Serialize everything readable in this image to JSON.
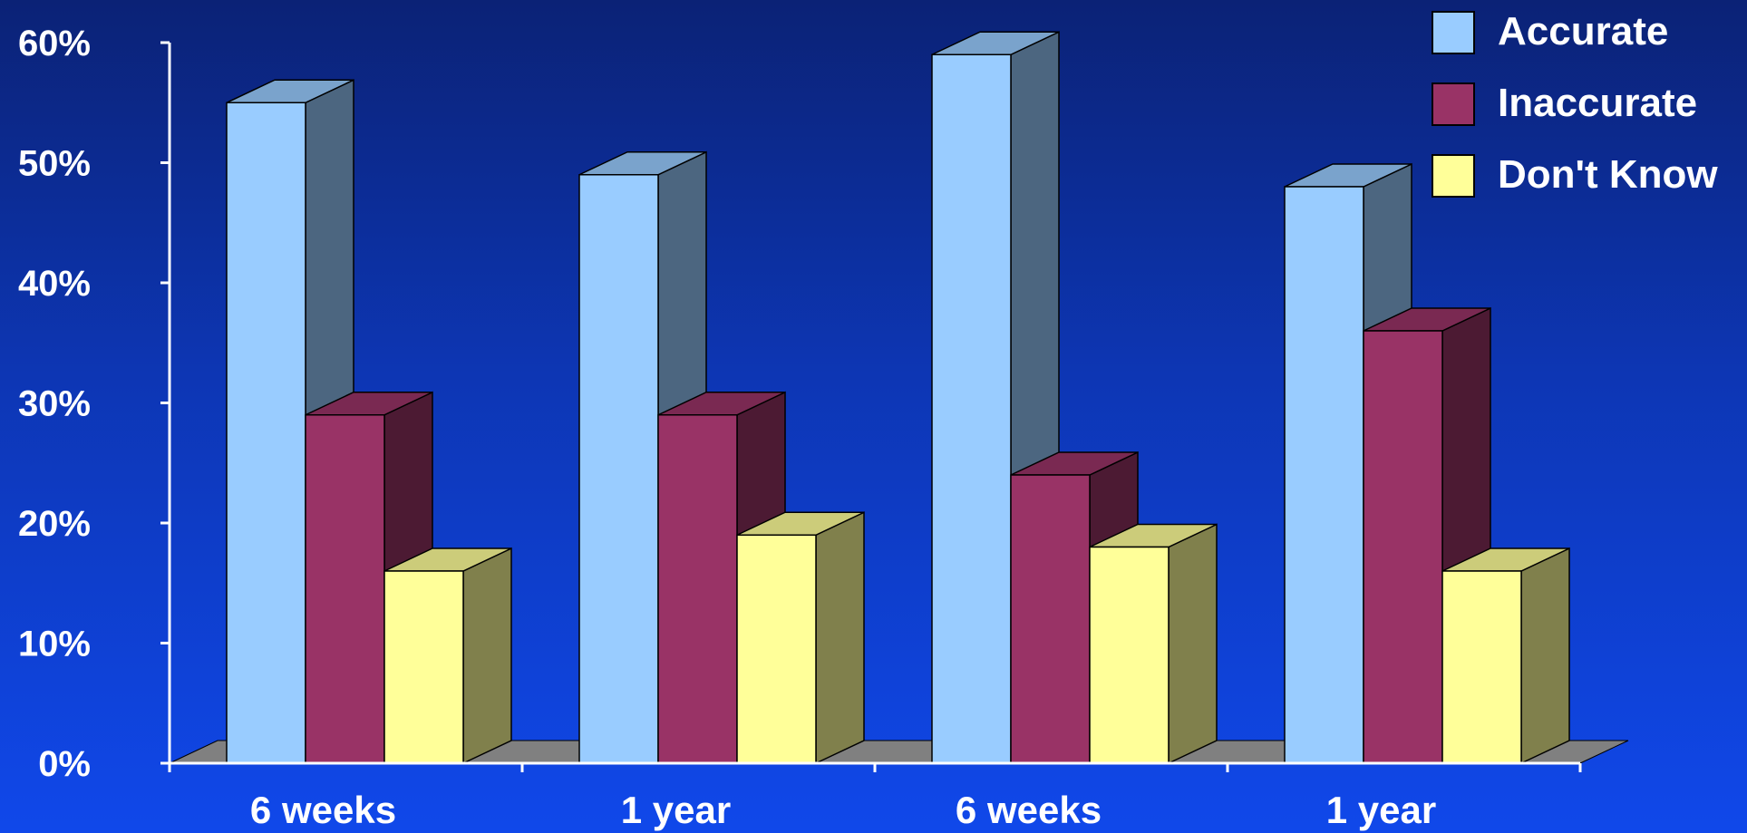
{
  "chart_data": {
    "type": "bar",
    "title": "",
    "xlabel": "",
    "ylabel": "",
    "categories": [
      "6 weeks",
      "1 year",
      "6 weeks",
      "1 year"
    ],
    "series": [
      {
        "name": "Accurate",
        "values": [
          55,
          49,
          59,
          48
        ],
        "color": "#99ccff",
        "side_color": "#4c6680",
        "top_color": "#7aa3cc"
      },
      {
        "name": "Inaccurate",
        "values": [
          29,
          29,
          24,
          36
        ],
        "color": "#993366",
        "side_color": "#4c1a33",
        "top_color": "#7a2952"
      },
      {
        "name": "Don't Know",
        "values": [
          16,
          19,
          18,
          16
        ],
        "color": "#ffff99",
        "side_color": "#80804c",
        "top_color": "#cccc7a"
      }
    ],
    "ylim": [
      0,
      60
    ],
    "y_ticks": [
      0,
      10,
      20,
      30,
      40,
      50,
      60
    ],
    "y_tick_labels": [
      "0%",
      "10%",
      "20%",
      "30%",
      "40%",
      "50%",
      "60%"
    ],
    "grid": false,
    "legend_position": "top-right",
    "style": "3d-bar",
    "colors": {
      "background_top": "#0b2276",
      "background_bottom": "#1048ea",
      "axis": "#ffffff",
      "floor": "#808080",
      "text": "#ffffff"
    }
  }
}
